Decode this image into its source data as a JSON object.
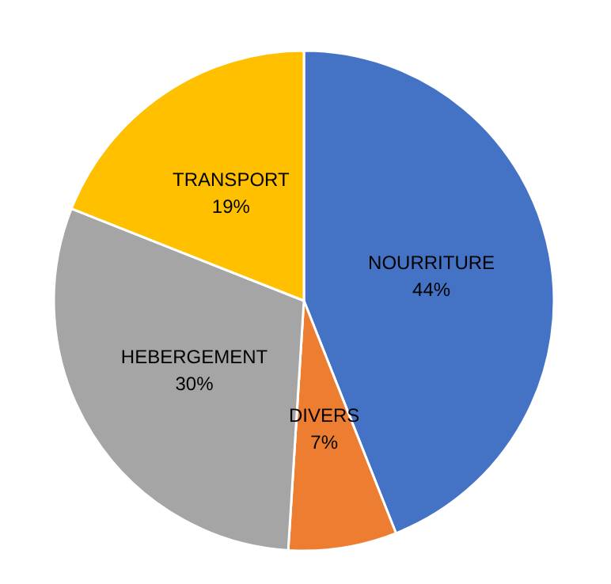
{
  "chart_data": {
    "type": "pie",
    "categories": [
      "NOURRITURE",
      "DIVERS",
      "HEBERGEMENT",
      "TRANSPORT"
    ],
    "values": [
      44,
      7,
      30,
      19
    ],
    "value_labels": [
      "44%",
      "7%",
      "30%",
      "19%"
    ],
    "colors": [
      "#4472c4",
      "#ed7d31",
      "#a5a5a5",
      "#ffc000"
    ],
    "legend": false
  }
}
